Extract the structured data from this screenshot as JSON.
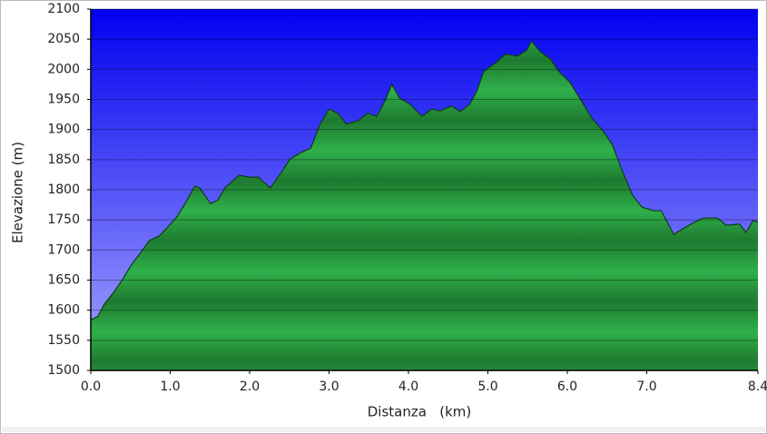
{
  "chart_data": {
    "type": "area",
    "x_label": "Distanza   (km)",
    "y_label": "Elevazione (m)",
    "x": [
      0,
      0.09,
      0.17,
      0.29,
      0.4,
      0.51,
      0.63,
      0.74,
      0.86,
      0.97,
      1.09,
      1.2,
      1.31,
      1.37,
      1.51,
      1.6,
      1.69,
      1.78,
      1.87,
      2.0,
      2.11,
      2.26,
      2.4,
      2.51,
      2.65,
      2.77,
      2.88,
      3.0,
      3.11,
      3.22,
      3.37,
      3.49,
      3.6,
      3.71,
      3.79,
      3.89,
      4.02,
      4.17,
      4.29,
      4.4,
      4.54,
      4.65,
      4.77,
      4.86,
      4.95,
      5.09,
      5.22,
      5.37,
      5.49,
      5.55,
      5.66,
      5.79,
      5.89,
      6.03,
      6.17,
      6.31,
      6.46,
      6.57,
      6.69,
      6.82,
      6.94,
      7.09,
      7.18,
      7.26,
      7.34,
      7.45,
      7.6,
      7.71,
      7.89,
      8.0,
      8.17,
      8.25,
      8.34,
      8.4
    ],
    "values": [
      1584,
      1590,
      1610,
      1630,
      1651,
      1675,
      1696,
      1716,
      1723,
      1738,
      1756,
      1780,
      1806,
      1803,
      1777,
      1783,
      1803,
      1814,
      1824,
      1821,
      1821,
      1803,
      1829,
      1851,
      1862,
      1869,
      1907,
      1934,
      1927,
      1909,
      1915,
      1927,
      1922,
      1949,
      1975,
      1952,
      1942,
      1922,
      1934,
      1931,
      1939,
      1930,
      1942,
      1964,
      1997,
      2010,
      2025,
      2022,
      2032,
      2047,
      2029,
      2017,
      1997,
      1979,
      1949,
      1919,
      1896,
      1874,
      1832,
      1791,
      1771,
      1765,
      1765,
      1746,
      1726,
      1735,
      1746,
      1753,
      1753,
      1741,
      1743,
      1729,
      1749,
      1746
    ],
    "color": "#1f9a3a",
    "xlim": [
      0,
      8.4
    ],
    "ylim": [
      1500,
      2100
    ],
    "xticks": [
      {
        "value": 0,
        "label": "0.0"
      },
      {
        "value": 1,
        "label": "1.0"
      },
      {
        "value": 2,
        "label": "2.0"
      },
      {
        "value": 3,
        "label": "3.0"
      },
      {
        "value": 4,
        "label": "4.0"
      },
      {
        "value": 5,
        "label": "5.0"
      },
      {
        "value": 6,
        "label": "6.0"
      },
      {
        "value": 7,
        "label": "7.0"
      },
      {
        "value": 8.4,
        "label": "8.4"
      }
    ],
    "yticks": [
      1500,
      1550,
      1600,
      1650,
      1700,
      1750,
      1800,
      1850,
      1900,
      1950,
      2000,
      2050,
      2100
    ],
    "grid": true
  }
}
